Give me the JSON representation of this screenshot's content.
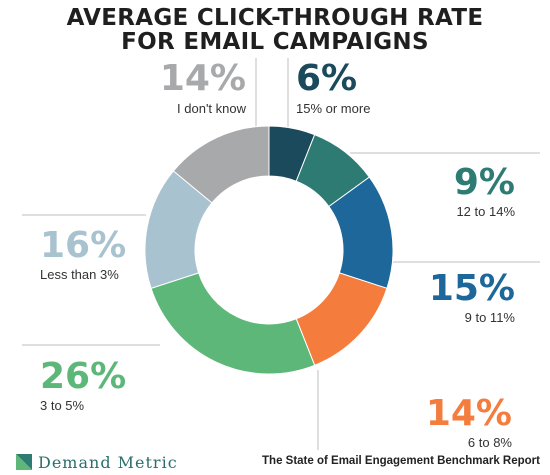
{
  "chart_data": {
    "type": "pie",
    "variant": "donut",
    "title_lines": [
      "AVERAGE CLICK-THROUGH RATE",
      "FOR EMAIL CAMPAIGNS"
    ],
    "slices": [
      {
        "label": "15% or more",
        "value": 6,
        "value_label": "6%",
        "color": "#1a4a5c"
      },
      {
        "label": "12 to 14%",
        "value": 9,
        "value_label": "9%",
        "color": "#2e7b73"
      },
      {
        "label": "9 to 11%",
        "value": 15,
        "value_label": "15%",
        "color": "#1d679b"
      },
      {
        "label": "6 to 8%",
        "value": 14,
        "value_label": "14%",
        "color": "#f47d3e"
      },
      {
        "label": "3 to 5%",
        "value": 26,
        "value_label": "26%",
        "color": "#5db779"
      },
      {
        "label": "Less than 3%",
        "value": 16,
        "value_label": "16%",
        "color": "#a8c3cf"
      },
      {
        "label": "I don't know",
        "value": 14,
        "value_label": "14%",
        "color": "#a8a9ab"
      }
    ]
  },
  "footer": {
    "brand": "Demand Metric",
    "source": "The State of Email Engagement Benchmark Report"
  }
}
